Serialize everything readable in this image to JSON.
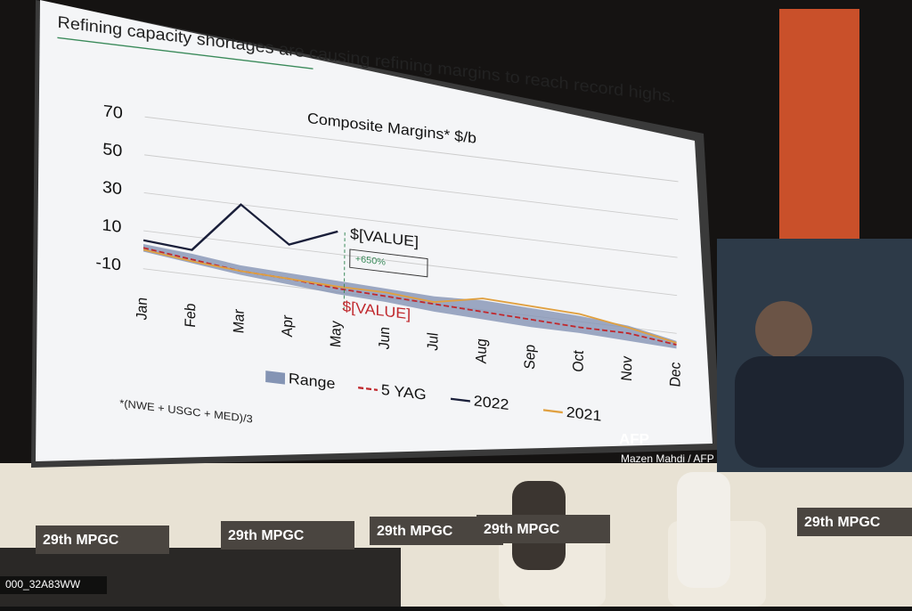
{
  "chart_data": {
    "type": "line",
    "slide_title": "Refining capacity shortages are causing refining margins to reach record highs.",
    "title": "Composite Margins* $/b",
    "footnote": "*(NWE + USGC + MED)/3",
    "annotations": [
      "$[VALUE]",
      "+650%",
      "$[VALUE]"
    ],
    "categories": [
      "Jan",
      "Feb",
      "Mar",
      "Apr",
      "May",
      "Jun",
      "Jul",
      "Aug",
      "Sep",
      "Oct",
      "Nov",
      "Dec"
    ],
    "series": [
      {
        "name": "Range",
        "color": "#8494b4",
        "values": [
          3,
          1,
          -2,
          -3,
          -4,
          -5,
          -6,
          -5,
          -6,
          -7,
          -9,
          -14
        ],
        "lower": [
          -1,
          -4,
          -7,
          -9,
          -11,
          -12,
          -14,
          -15,
          -16,
          -16,
          -17,
          -18
        ]
      },
      {
        "name": "5 YAG",
        "color": "#c0282d",
        "values": [
          1,
          -2,
          -5,
          -6,
          -8,
          -9,
          -10,
          -11,
          -12,
          -13,
          -13,
          -16
        ]
      },
      {
        "name": "2022",
        "color": "#1a1f3a",
        "values": [
          5,
          3,
          30,
          12,
          22,
          null,
          null,
          null,
          null,
          null,
          null,
          null
        ]
      },
      {
        "name": "2021",
        "color": "#e0a040",
        "values": [
          0,
          -3,
          -5,
          -6,
          -7,
          -7,
          -9,
          -4,
          -5,
          -6,
          -10,
          -15
        ]
      }
    ],
    "ylim": [
      -20,
      75
    ],
    "yticks": [
      -10,
      10,
      30,
      50,
      70
    ]
  },
  "banners": [
    "29th MPGC",
    "29th MPGC",
    "29th MPGC",
    "29th MPGC",
    "29th MPGC"
  ],
  "credit": {
    "agency": "AFP",
    "photographer": "Mazen Mahdi / AFP",
    "id": "000_32A83WW"
  }
}
